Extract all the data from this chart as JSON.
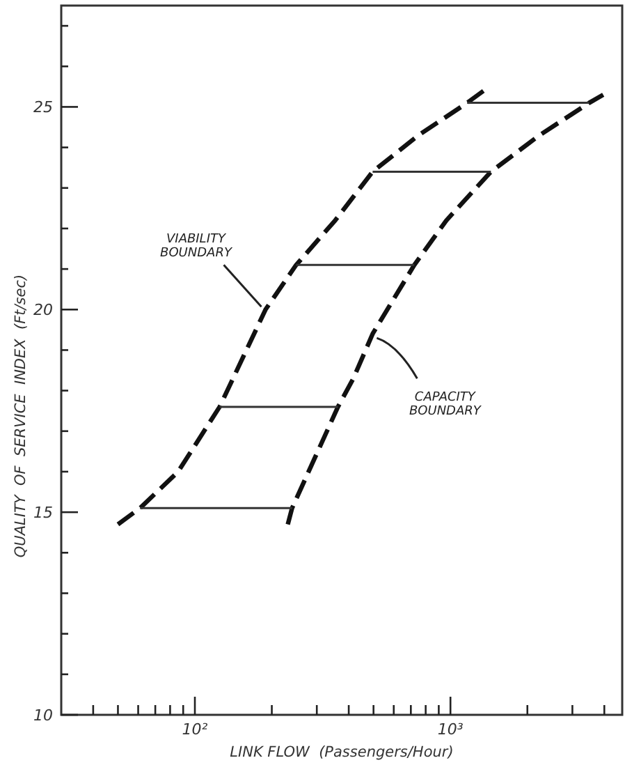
{
  "chart_data": {
    "type": "line",
    "xlabel": "LINK FLOW  (Passengers/Hour)",
    "ylabel": "QUALITY  OF  SERVICE  INDEX  (Ft/sec)",
    "log": "x",
    "grid": false,
    "line_style": "dashed",
    "xlim": [
      30,
      4700
    ],
    "ylim": [
      10,
      27.5
    ],
    "xticks": [
      {
        "value": 40,
        "label": null
      },
      {
        "value": 50,
        "label": null
      },
      {
        "value": 60,
        "label": null
      },
      {
        "value": 70,
        "label": null
      },
      {
        "value": 80,
        "label": null
      },
      {
        "value": 90,
        "label": null
      },
      {
        "value": 100,
        "label": "10²"
      },
      {
        "value": 200,
        "label": null
      },
      {
        "value": 300,
        "label": null
      },
      {
        "value": 400,
        "label": null
      },
      {
        "value": 500,
        "label": null
      },
      {
        "value": 600,
        "label": null
      },
      {
        "value": 700,
        "label": null
      },
      {
        "value": 800,
        "label": null
      },
      {
        "value": 900,
        "label": null
      },
      {
        "value": 1000,
        "label": "10³"
      },
      {
        "value": 2000,
        "label": null
      },
      {
        "value": 3000,
        "label": null
      },
      {
        "value": 4000,
        "label": null
      }
    ],
    "yticks": [
      10,
      {
        "value": 11,
        "label": null
      },
      {
        "value": 12,
        "label": null
      },
      {
        "value": 13,
        "label": null
      },
      {
        "value": 14,
        "label": null
      },
      15,
      {
        "value": 16,
        "label": null
      },
      {
        "value": 17,
        "label": null
      },
      {
        "value": 18,
        "label": null
      },
      {
        "value": 19,
        "label": null
      },
      20,
      {
        "value": 21,
        "label": null
      },
      {
        "value": 22,
        "label": null
      },
      {
        "value": 23,
        "label": null
      },
      {
        "value": 24,
        "label": null
      },
      25,
      {
        "value": 26,
        "label": null
      },
      {
        "value": 27,
        "label": null
      }
    ],
    "series": [
      {
        "color": "#111111",
        "x": [
          50,
          61,
          86,
          125,
          189,
          249,
          354,
          496,
          750,
          1162,
          1350
        ],
        "values": [
          14.7,
          15.1,
          16,
          17.6,
          20,
          21.1,
          22.2,
          23.4,
          24.3,
          25.1,
          25.4
        ]
      },
      {
        "color": "#111111",
        "x": [
          231,
          240,
          363,
          417,
          496,
          722,
          964,
          1440,
          2230,
          3490,
          3960
        ],
        "values": [
          14.7,
          15.1,
          17.6,
          18.3,
          19.4,
          21.1,
          22.2,
          23.4,
          24.3,
          25.1,
          25.3
        ]
      },
      {
        "color": "#333333",
        "line_style": "solid",
        "x": [
          61,
          240
        ],
        "values": [
          15.1,
          15.1
        ]
      },
      {
        "color": "#333333",
        "line_style": "solid",
        "x": [
          125,
          363
        ],
        "values": [
          17.6,
          17.6
        ]
      },
      {
        "color": "#333333",
        "line_style": "solid",
        "x": [
          249,
          722
        ],
        "values": [
          21.1,
          21.1
        ]
      },
      {
        "color": "#333333",
        "line_style": "solid",
        "x": [
          496,
          1440
        ],
        "values": [
          23.4,
          23.4
        ]
      },
      {
        "color": "#333333",
        "line_style": "solid",
        "x": [
          1162,
          3490
        ],
        "values": [
          25.1,
          25.1
        ]
      }
    ],
    "annotations": [
      {
        "text": "VIABILITY BOUNDARY",
        "x": 189,
        "y": 20
      },
      {
        "text": "CAPACITY BOUNDARY",
        "x": 496,
        "y": 19.4
      }
    ]
  }
}
